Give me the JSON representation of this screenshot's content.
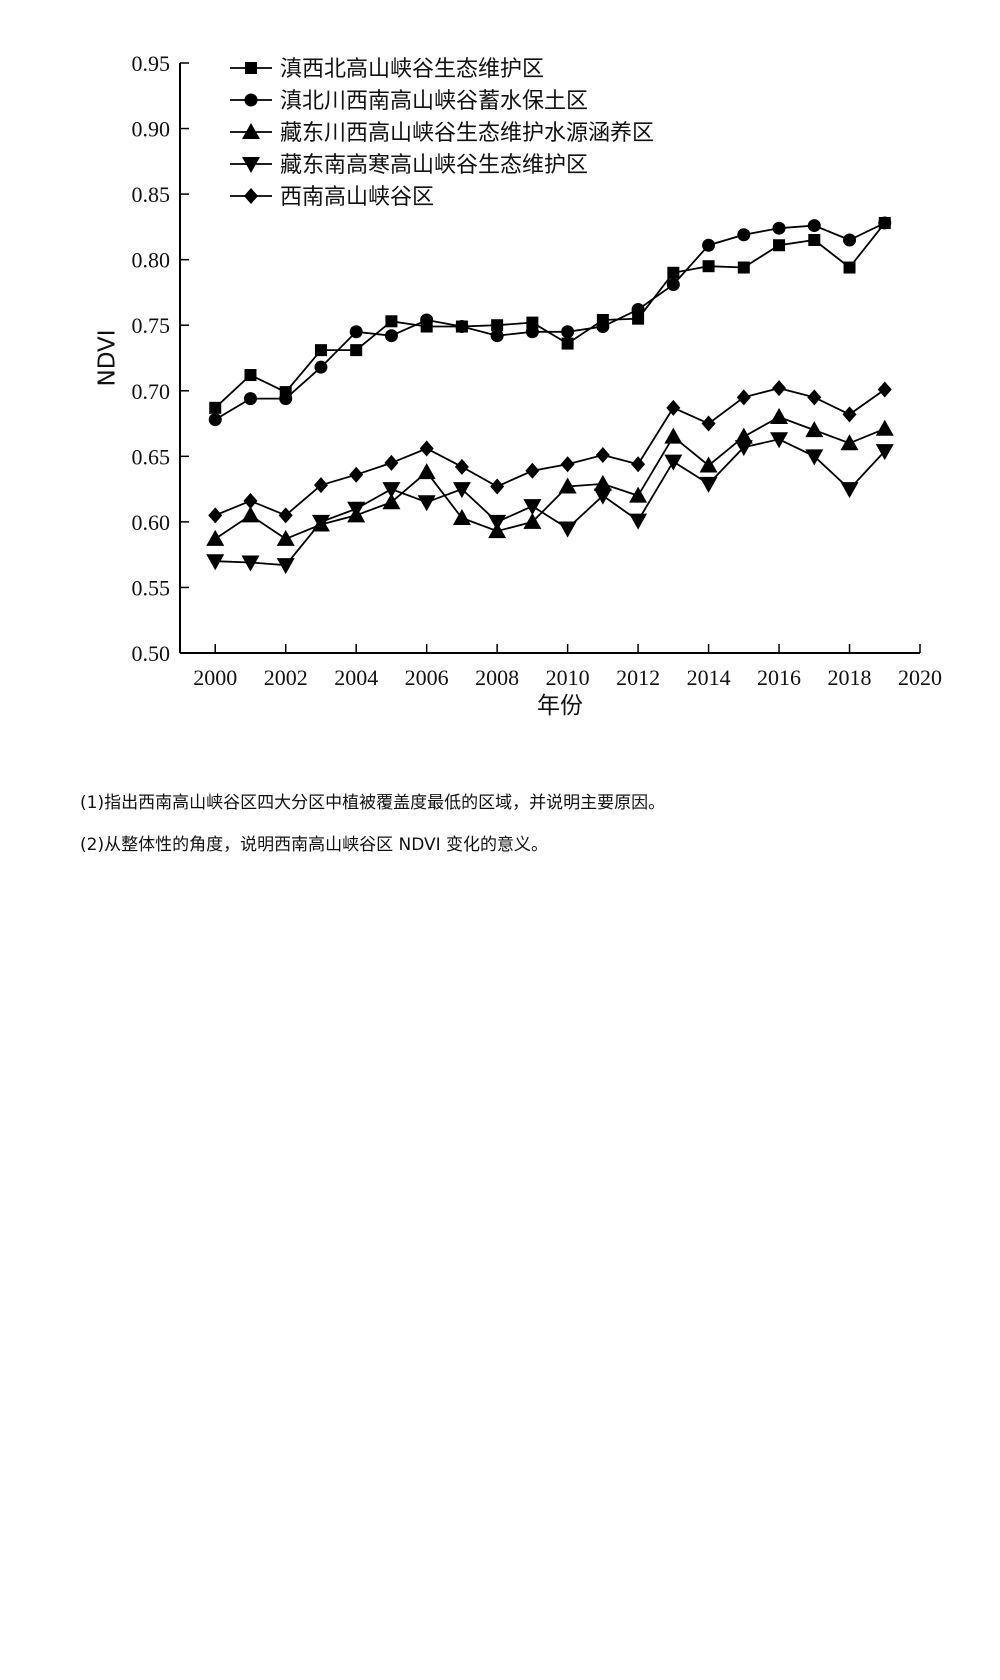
{
  "chart_data": {
    "type": "line",
    "title": "",
    "xlabel": "年份",
    "ylabel": "NDVI",
    "xlim": [
      1999,
      2020
    ],
    "ylim": [
      0.5,
      0.95
    ],
    "x_ticks": [
      2000,
      2002,
      2004,
      2006,
      2008,
      2010,
      2012,
      2014,
      2016,
      2018,
      2020
    ],
    "y_ticks": [
      "0.50",
      "0.55",
      "0.60",
      "0.65",
      "0.70",
      "0.75",
      "0.80",
      "0.85",
      "0.90",
      "0.95"
    ],
    "grid": false,
    "legend_position": "top-left",
    "x": [
      2000,
      2001,
      2002,
      2003,
      2004,
      2005,
      2006,
      2007,
      2008,
      2009,
      2010,
      2011,
      2012,
      2013,
      2014,
      2015,
      2016,
      2017,
      2018,
      2019
    ],
    "series": [
      {
        "name": "滇西北高山峡谷生态维护区",
        "marker": "square",
        "values": [
          0.687,
          0.712,
          0.699,
          0.731,
          0.731,
          0.753,
          0.749,
          0.749,
          0.75,
          0.752,
          0.736,
          0.754,
          0.755,
          0.79,
          0.795,
          0.794,
          0.811,
          0.815,
          0.794,
          0.828
        ]
      },
      {
        "name": "滇北川西南高山峡谷蓄水保土区",
        "marker": "circle",
        "values": [
          0.678,
          0.694,
          0.694,
          0.718,
          0.745,
          0.742,
          0.754,
          0.749,
          0.742,
          0.745,
          0.745,
          0.749,
          0.762,
          0.781,
          0.811,
          0.819,
          0.824,
          0.826,
          0.815,
          0.828
        ]
      },
      {
        "name": "藏东川西高山峡谷生态维护水源涵养区",
        "marker": "triangle-up",
        "values": [
          0.587,
          0.605,
          0.587,
          0.598,
          0.605,
          0.615,
          0.638,
          0.603,
          0.593,
          0.6,
          0.627,
          0.629,
          0.62,
          0.665,
          0.643,
          0.665,
          0.68,
          0.67,
          0.66,
          0.671
        ]
      },
      {
        "name": "藏东南高寒高山峡谷生态维护区",
        "marker": "triangle-down",
        "values": [
          0.57,
          0.569,
          0.567,
          0.6,
          0.61,
          0.625,
          0.615,
          0.625,
          0.6,
          0.612,
          0.595,
          0.62,
          0.601,
          0.646,
          0.629,
          0.657,
          0.663,
          0.65,
          0.625,
          0.654
        ]
      },
      {
        "name": "西南高山峡谷区",
        "marker": "diamond",
        "values": [
          0.605,
          0.616,
          0.605,
          0.628,
          0.636,
          0.645,
          0.656,
          0.642,
          0.627,
          0.639,
          0.644,
          0.651,
          0.644,
          0.687,
          0.675,
          0.695,
          0.702,
          0.695,
          0.682,
          0.701
        ]
      }
    ]
  },
  "questions": {
    "q1": "(1)指出西南高山峡谷区四大分区中植被覆盖度最低的区域，并说明主要原因。",
    "q2": "(2)从整体性的角度，说明西南高山峡谷区 NDVI 变化的意义。"
  }
}
